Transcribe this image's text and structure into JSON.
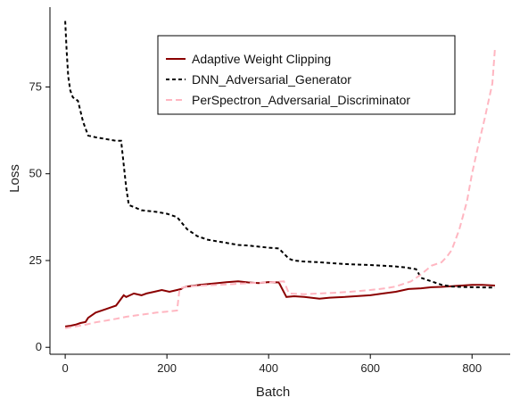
{
  "chart_data": {
    "type": "line",
    "xlabel": "Batch",
    "ylabel": "Loss",
    "xlim": [
      -30,
      875
    ],
    "ylim": [
      -2,
      98
    ],
    "xticks": [
      0,
      200,
      400,
      600,
      800
    ],
    "yticks": [
      0,
      25,
      50,
      75
    ],
    "grid": false,
    "legend_position": "top-right",
    "series": [
      {
        "name": "Adaptive Weight Clipping",
        "color": "#8b0000",
        "dash": "solid",
        "x": [
          0,
          10,
          20,
          30,
          40,
          45,
          60,
          80,
          100,
          115,
          120,
          135,
          150,
          160,
          175,
          190,
          205,
          220,
          228,
          232,
          240,
          255,
          265,
          280,
          300,
          320,
          340,
          360,
          380,
          400,
          420,
          435,
          450,
          470,
          500,
          520,
          550,
          580,
          600,
          625,
          650,
          675,
          700,
          720,
          740,
          750,
          780,
          800,
          820,
          845
        ],
        "y": [
          6,
          6.2,
          6.5,
          7,
          7.3,
          8.5,
          10,
          11,
          12,
          15,
          14.5,
          15.5,
          15,
          15.5,
          16,
          16.5,
          16,
          16.5,
          16.8,
          17.2,
          17.5,
          17.8,
          18,
          18.2,
          18.5,
          18.8,
          19,
          18.7,
          18.5,
          18.8,
          18.7,
          14.5,
          14.7,
          14.5,
          14,
          14.3,
          14.5,
          14.8,
          15,
          15.5,
          16,
          16.8,
          17,
          17.3,
          17.4,
          17.5,
          17.8,
          18,
          18,
          17.8
        ]
      },
      {
        "name": "DNN_Adversarial_Generator",
        "color": "#000000",
        "dash": "4,3",
        "x": [
          0,
          3,
          6,
          10,
          15,
          25,
          35,
          45,
          60,
          80,
          100,
          110,
          120,
          125,
          150,
          180,
          200,
          220,
          240,
          260,
          280,
          300,
          320,
          340,
          360,
          380,
          400,
          420,
          440,
          450,
          470,
          500,
          520,
          550,
          580,
          600,
          625,
          650,
          670,
          690,
          700,
          720,
          740,
          760,
          800,
          845
        ],
        "y": [
          94,
          85,
          78,
          74,
          72,
          71,
          65,
          61,
          60.5,
          60,
          59.5,
          59.5,
          46,
          41,
          39.5,
          39,
          38.5,
          37.5,
          34,
          32,
          31,
          30.5,
          30,
          29.5,
          29.3,
          29,
          28.7,
          28.5,
          25.5,
          25,
          24.7,
          24.5,
          24.3,
          24,
          23.8,
          23.7,
          23.5,
          23.3,
          23,
          22.5,
          20,
          19,
          18,
          17.5,
          17.3,
          17.2
        ]
      },
      {
        "name": "PerSpectron_Adversarial_Discriminator",
        "color": "#ffb6c1",
        "dash": "7,4",
        "x": [
          0,
          20,
          40,
          60,
          80,
          100,
          110,
          120,
          140,
          160,
          180,
          200,
          220,
          225,
          235,
          250,
          270,
          300,
          330,
          360,
          400,
          430,
          440,
          470,
          500,
          530,
          560,
          600,
          630,
          650,
          680,
          700,
          720,
          740,
          750,
          760,
          775,
          790,
          800,
          812,
          825,
          840,
          845
        ],
        "y": [
          5.5,
          6,
          6.5,
          7.2,
          7.7,
          8.2,
          8.5,
          8.8,
          9.2,
          9.6,
          10,
          10.3,
          10.6,
          17,
          17.3,
          17.6,
          17.8,
          18,
          18.2,
          18.5,
          18.7,
          19,
          15.5,
          15.3,
          15.5,
          15.7,
          16,
          16.5,
          17,
          17.5,
          19,
          21,
          23.5,
          24.5,
          26,
          28,
          34,
          42,
          50,
          58,
          66,
          76,
          86
        ]
      }
    ]
  }
}
